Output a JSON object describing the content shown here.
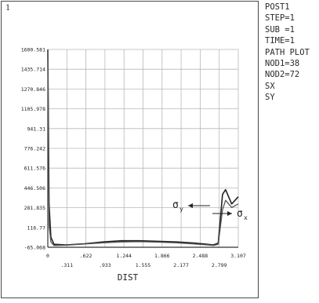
{
  "window": {
    "number": "1"
  },
  "info_panel": {
    "lines": [
      "POST1",
      "STEP=1",
      "SUB =1",
      "TIME=1",
      "PATH PLOT",
      "NOD1=38",
      "NOD2=72",
      "SX",
      "SY"
    ]
  },
  "annotations": {
    "sigma_y": {
      "symbol": "σ",
      "subscript": "y"
    },
    "sigma_x": {
      "symbol": "σ",
      "subscript": "x"
    }
  },
  "chart_data": {
    "type": "line",
    "title": "",
    "xlabel": "DIST",
    "ylabel": "",
    "xlim": [
      0,
      3.107
    ],
    "ylim": [
      -65.068,
      1600.581
    ],
    "grid": true,
    "x_ticks_upper": [
      "0",
      ".622",
      "1.244",
      "1.866",
      "2.488",
      "3.107"
    ],
    "x_ticks_lower": [
      ".311",
      ".933",
      "1.555",
      "2.177",
      "2.799"
    ],
    "y_ticks": [
      "-65.068",
      "116.77",
      "281.835",
      "446.506",
      "611.576",
      "776.242",
      "941.31",
      "1105.978",
      "1270.846",
      "1435.714",
      "1600.581"
    ],
    "series": [
      {
        "name": "SX",
        "color": "#222222",
        "x": [
          0,
          0.02,
          0.05,
          0.1,
          0.3,
          0.6,
          0.9,
          1.2,
          1.5,
          1.8,
          2.1,
          2.4,
          2.6,
          2.7,
          2.78,
          2.85,
          2.9,
          3.0,
          3.107
        ],
        "y": [
          1600.581,
          300,
          20,
          -40,
          -45,
          -35,
          -20,
          -10,
          -10,
          -15,
          -20,
          -30,
          -40,
          -45,
          -30,
          380,
          420,
          300,
          360
        ]
      },
      {
        "name": "SY",
        "color": "#555555",
        "x": [
          0,
          0.02,
          0.05,
          0.1,
          0.3,
          0.6,
          0.9,
          1.2,
          1.5,
          1.8,
          2.1,
          2.4,
          2.6,
          2.7,
          2.78,
          2.85,
          2.9,
          3.0,
          3.107
        ],
        "y": [
          1600.581,
          120,
          -20,
          -50,
          -48,
          -38,
          -28,
          -20,
          -18,
          -22,
          -28,
          -38,
          -45,
          -50,
          -40,
          250,
          330,
          270,
          300
        ]
      }
    ]
  }
}
